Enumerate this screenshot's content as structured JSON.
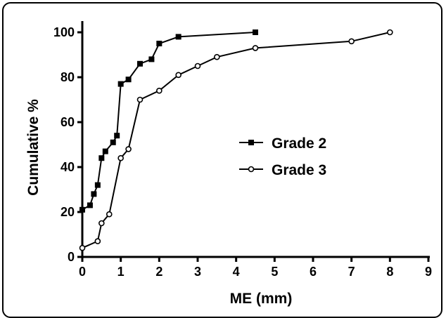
{
  "chart_data": {
    "type": "line",
    "title": "",
    "xlabel": "ME (mm)",
    "ylabel": "Cumulative %",
    "xlim": [
      0,
      9
    ],
    "ylim": [
      0,
      100
    ],
    "x_ticks": [
      0,
      1,
      2,
      3,
      4,
      5,
      6,
      7,
      8,
      9
    ],
    "y_ticks": [
      0,
      20,
      40,
      60,
      80,
      100
    ],
    "grid": false,
    "legend_position": "center-right",
    "series": [
      {
        "name": "Grade 2",
        "marker": "filled-square",
        "color": "#000000",
        "x": [
          0,
          0.2,
          0.3,
          0.4,
          0.5,
          0.6,
          0.8,
          0.9,
          1.0,
          1.2,
          1.5,
          1.8,
          2.0,
          2.5,
          4.5
        ],
        "y": [
          21,
          23,
          28,
          32,
          44,
          47,
          51,
          54,
          77,
          79,
          86,
          88,
          95,
          98,
          100
        ]
      },
      {
        "name": "Grade 3",
        "marker": "open-circle",
        "color": "#000000",
        "x": [
          0,
          0.4,
          0.5,
          0.7,
          1.0,
          1.2,
          1.5,
          2.0,
          2.5,
          3.0,
          3.5,
          4.5,
          7.0,
          8.0
        ],
        "y": [
          4,
          7,
          15,
          19,
          44,
          48,
          70,
          74,
          81,
          85,
          89,
          93,
          96,
          100
        ]
      }
    ]
  }
}
